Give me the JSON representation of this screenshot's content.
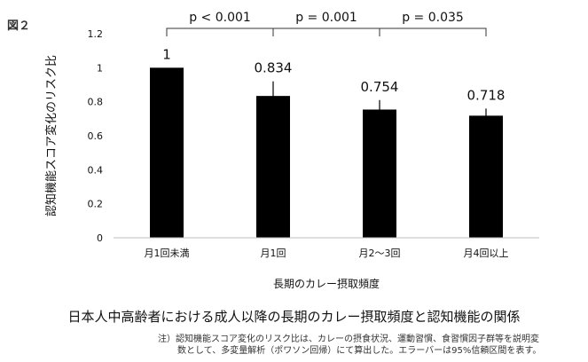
{
  "figure_label": "図２",
  "chart_data": {
    "type": "bar",
    "categories": [
      "月1回未満",
      "月1回",
      "月2〜3回",
      "月4回以上"
    ],
    "values": [
      1,
      0.834,
      0.754,
      0.718
    ],
    "value_labels": [
      "1",
      "0.834",
      "0.754",
      "0.718"
    ],
    "error_bars": [
      {
        "low": 1,
        "high": 1
      },
      {
        "low": 0.78,
        "high": 0.92
      },
      {
        "low": 0.7,
        "high": 0.81
      },
      {
        "low": 0.67,
        "high": 0.76
      }
    ],
    "xlabel": "長期のカレー摂取頻度",
    "ylabel": "認知機能スコア変化のリスク比",
    "ylim": [
      0,
      1.2
    ],
    "yticks": [
      "0",
      "0.2",
      "0.4",
      "0.6",
      "0.8",
      "1",
      "1.2"
    ],
    "ytick_values": [
      0,
      0.2,
      0.4,
      0.6,
      0.8,
      1,
      1.2
    ],
    "bar_color": "#000000",
    "grid": false,
    "annotations": [
      {
        "text": "p < 0.001",
        "from": 0,
        "to": 1
      },
      {
        "text": "p = 0.001",
        "from": 1,
        "to": 2
      },
      {
        "text": "p = 0.035",
        "from": 2,
        "to": 3
      }
    ]
  },
  "caption": "日本人中高齢者における成人以降の長期のカレー摂取頻度と認知機能の関係",
  "note_line1": "注）認知機能スコア変化のリスク比は、カレーの摂食状況、運動習慣、食習慣因子群等を説明変",
  "note_line2": "数として、多変量解析（ポワソン回帰）にて算出した。エラーバーは95%信頼区間を表す。"
}
